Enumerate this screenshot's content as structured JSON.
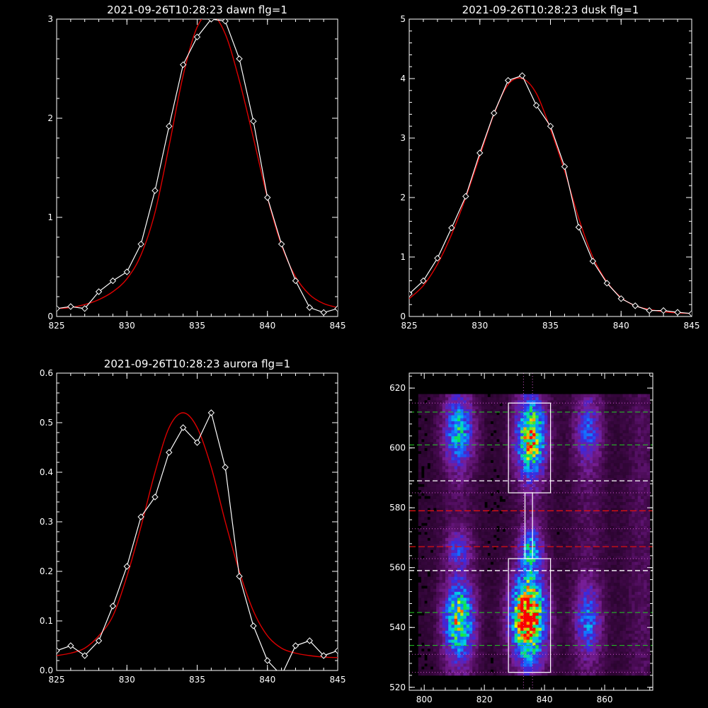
{
  "colors": {
    "background": "#000000",
    "axes": "#ffffff",
    "data": "#ffffff",
    "fit": "#dd0000",
    "green_dash": "#22cc22",
    "red_dash": "#dd1111",
    "white_dash": "#ffffff",
    "dotted": "#cc55cc"
  },
  "chart_data": [
    {
      "type": "line",
      "title": "2021-09-26T10:28:23 dawn flg=1",
      "xlabel": "",
      "ylabel": "",
      "xlim": [
        825,
        845
      ],
      "ylim": [
        0,
        3
      ],
      "xticks": [
        825,
        830,
        835,
        840,
        845
      ],
      "yticks": [
        0,
        1,
        2,
        3
      ],
      "series": [
        {
          "role": "data",
          "marker": "diamond",
          "x": [
            825,
            826,
            827,
            828,
            829,
            830,
            831,
            832,
            833,
            834,
            835,
            836,
            837,
            838,
            839,
            840,
            841,
            842,
            843,
            844,
            845
          ],
          "y": [
            0.08,
            0.1,
            0.08,
            0.25,
            0.36,
            0.45,
            0.73,
            1.27,
            1.92,
            2.54,
            2.82,
            3.0,
            2.98,
            2.6,
            1.97,
            1.2,
            0.73,
            0.36,
            0.09,
            0.04,
            0.08
          ]
        },
        {
          "role": "fit",
          "x": [
            825,
            826,
            827,
            828,
            829,
            830,
            831,
            832,
            833,
            834,
            835,
            836,
            837,
            838,
            839,
            840,
            841,
            842,
            843,
            844,
            845
          ],
          "y": [
            0.08,
            0.09,
            0.12,
            0.17,
            0.25,
            0.38,
            0.62,
            1.05,
            1.72,
            2.43,
            2.92,
            3.05,
            2.85,
            2.38,
            1.8,
            1.2,
            0.72,
            0.4,
            0.22,
            0.13,
            0.09
          ]
        }
      ]
    },
    {
      "type": "line",
      "title": "2021-09-26T10:28:23 dusk flg=1",
      "xlabel": "",
      "ylabel": "",
      "xlim": [
        825,
        845
      ],
      "ylim": [
        0,
        5
      ],
      "xticks": [
        825,
        830,
        835,
        840,
        845
      ],
      "yticks": [
        0,
        1,
        2,
        3,
        4,
        5
      ],
      "series": [
        {
          "role": "data",
          "marker": "diamond",
          "x": [
            825,
            826,
            827,
            828,
            829,
            830,
            831,
            832,
            833,
            834,
            835,
            836,
            837,
            838,
            839,
            840,
            841,
            842,
            843,
            844,
            845
          ],
          "y": [
            0.38,
            0.6,
            0.98,
            1.49,
            2.02,
            2.75,
            3.42,
            3.97,
            4.05,
            3.55,
            3.2,
            2.52,
            1.5,
            0.93,
            0.56,
            0.3,
            0.18,
            0.1,
            0.1,
            0.07,
            0.05
          ]
        },
        {
          "role": "fit",
          "x": [
            825,
            826,
            827,
            828,
            829,
            830,
            831,
            832,
            833,
            834,
            835,
            836,
            837,
            838,
            839,
            840,
            841,
            842,
            843,
            844,
            845
          ],
          "y": [
            0.3,
            0.52,
            0.88,
            1.38,
            2.0,
            2.7,
            3.4,
            3.9,
            4.0,
            3.75,
            3.15,
            2.45,
            1.65,
            1.0,
            0.58,
            0.32,
            0.18,
            0.12,
            0.08,
            0.06,
            0.05
          ]
        }
      ]
    },
    {
      "type": "line",
      "title": "2021-09-26T10:28:23 aurora flg=1",
      "xlabel": "",
      "ylabel": "",
      "xlim": [
        825,
        845
      ],
      "ylim": [
        0,
        0.6
      ],
      "xticks": [
        825,
        830,
        835,
        840,
        845
      ],
      "yticks": [
        0.0,
        0.1,
        0.2,
        0.3,
        0.4,
        0.5,
        0.6
      ],
      "ytick_labels": [
        "0.0",
        "0.1",
        "0.2",
        "0.3",
        "0.4",
        "0.5",
        "0.6"
      ],
      "series": [
        {
          "role": "data",
          "marker": "diamond",
          "x": [
            825,
            826,
            827,
            828,
            829,
            830,
            831,
            832,
            833,
            834,
            835,
            836,
            837,
            838,
            839,
            840,
            841,
            842,
            843,
            844,
            845
          ],
          "y": [
            0.04,
            0.05,
            0.03,
            0.06,
            0.13,
            0.21,
            0.31,
            0.35,
            0.44,
            0.49,
            0.46,
            0.52,
            0.41,
            0.19,
            0.09,
            0.02,
            -0.01,
            0.05,
            0.06,
            0.03,
            0.04
          ]
        },
        {
          "role": "fit",
          "x": [
            825,
            826,
            827,
            828,
            829,
            830,
            831,
            832,
            833,
            834,
            835,
            836,
            837,
            838,
            839,
            840,
            841,
            842,
            843,
            844,
            845
          ],
          "y": [
            0.03,
            0.035,
            0.045,
            0.07,
            0.11,
            0.19,
            0.29,
            0.4,
            0.49,
            0.52,
            0.49,
            0.41,
            0.3,
            0.2,
            0.12,
            0.07,
            0.045,
            0.035,
            0.03,
            0.027,
            0.026
          ]
        }
      ]
    },
    {
      "type": "heatmap",
      "title": "",
      "xlabel": "",
      "ylabel": "",
      "xlim": [
        795,
        876
      ],
      "ylim": [
        519,
        625
      ],
      "xticks": [
        800,
        820,
        840,
        860
      ],
      "yticks": [
        520,
        540,
        560,
        580,
        600,
        620
      ],
      "colormap": "rainbow",
      "blobs": [
        {
          "x": 811,
          "y": 605,
          "sx": 3.5,
          "sy": 8,
          "amp": 0.45
        },
        {
          "x": 811,
          "y": 542,
          "sx": 3.5,
          "sy": 9,
          "amp": 0.65
        },
        {
          "x": 811,
          "y": 566,
          "sx": 3,
          "sy": 4,
          "amp": 0.25
        },
        {
          "x": 835,
          "y": 603,
          "sx": 3.5,
          "sy": 9,
          "amp": 0.72
        },
        {
          "x": 834,
          "y": 543,
          "sx": 4,
          "sy": 10,
          "amp": 0.95
        },
        {
          "x": 835,
          "y": 566,
          "sx": 2.5,
          "sy": 5,
          "amp": 0.4
        },
        {
          "x": 854,
          "y": 605,
          "sx": 3,
          "sy": 8,
          "amp": 0.28
        },
        {
          "x": 854,
          "y": 542,
          "sx": 3,
          "sy": 8,
          "amp": 0.35
        }
      ],
      "boxes": [
        {
          "x0": 828,
          "x1": 842,
          "y0": 585,
          "y1": 615
        },
        {
          "x0": 828,
          "x1": 842,
          "y0": 525,
          "y1": 563
        },
        {
          "x0": 833.5,
          "x1": 836,
          "y0": 563,
          "y1": 585
        }
      ],
      "hlines_green_dashed": [
        534,
        545,
        601,
        612
      ],
      "hlines_red_dashed": [
        567,
        579
      ],
      "hlines_white_dashed": [
        559,
        589
      ],
      "hlines_dotted": [
        525,
        531,
        563,
        573,
        585,
        615
      ],
      "vlines_dotted": [
        833,
        836
      ]
    }
  ]
}
